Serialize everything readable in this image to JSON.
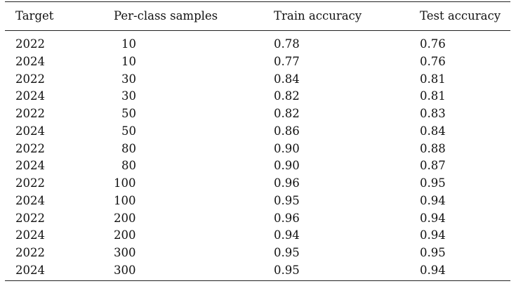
{
  "table": {
    "headers": [
      "Target",
      "Per-class samples",
      "Train accuracy",
      "Test accuracy"
    ],
    "rows": [
      {
        "target": "2022",
        "samples": "10",
        "train": "0.78",
        "test": "0.76"
      },
      {
        "target": "2024",
        "samples": "10",
        "train": "0.77",
        "test": "0.76"
      },
      {
        "target": "2022",
        "samples": "30",
        "train": "0.84",
        "test": "0.81"
      },
      {
        "target": "2024",
        "samples": "30",
        "train": "0.82",
        "test": "0.81"
      },
      {
        "target": "2022",
        "samples": "50",
        "train": "0.82",
        "test": "0.83"
      },
      {
        "target": "2024",
        "samples": "50",
        "train": "0.86",
        "test": "0.84"
      },
      {
        "target": "2022",
        "samples": "80",
        "train": "0.90",
        "test": "0.88"
      },
      {
        "target": "2024",
        "samples": "80",
        "train": "0.90",
        "test": "0.87"
      },
      {
        "target": "2022",
        "samples": "100",
        "train": "0.96",
        "test": "0.95"
      },
      {
        "target": "2024",
        "samples": "100",
        "train": "0.95",
        "test": "0.94"
      },
      {
        "target": "2022",
        "samples": "200",
        "train": "0.96",
        "test": "0.94"
      },
      {
        "target": "2024",
        "samples": "200",
        "train": "0.94",
        "test": "0.94"
      },
      {
        "target": "2022",
        "samples": "300",
        "train": "0.95",
        "test": "0.95"
      },
      {
        "target": "2024",
        "samples": "300",
        "train": "0.95",
        "test": "0.94"
      }
    ]
  }
}
